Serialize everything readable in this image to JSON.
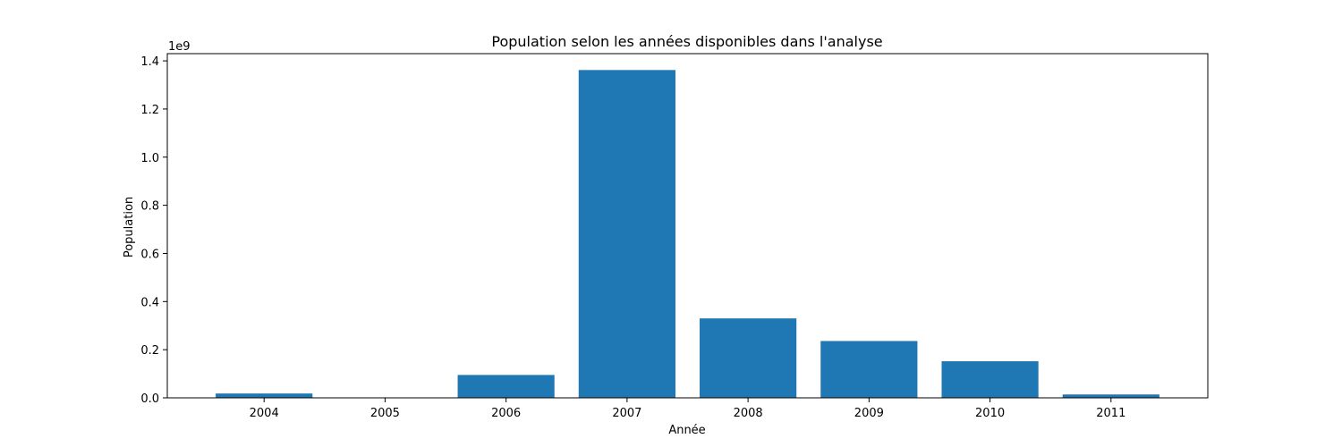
{
  "chart_data": {
    "type": "bar",
    "title": "Population selon les années disponibles dans l'analyse",
    "xlabel": "Année",
    "ylabel": "Population",
    "y_offset_label": "1e9",
    "categories": [
      "2004",
      "2005",
      "2006",
      "2007",
      "2008",
      "2009",
      "2010",
      "2011"
    ],
    "values": [
      18000000,
      0,
      95000000,
      1362000000,
      330000000,
      236000000,
      152000000,
      14000000
    ],
    "ylim": [
      0,
      1430000000
    ],
    "y_ticks": [
      0,
      200000000,
      400000000,
      600000000,
      800000000,
      1000000000,
      1200000000,
      1400000000
    ],
    "y_tick_labels": [
      "0.0",
      "0.2",
      "0.4",
      "0.6",
      "0.8",
      "1.0",
      "1.2",
      "1.4"
    ],
    "bar_color": "#1f77b4",
    "grid": false,
    "legend": "none"
  }
}
